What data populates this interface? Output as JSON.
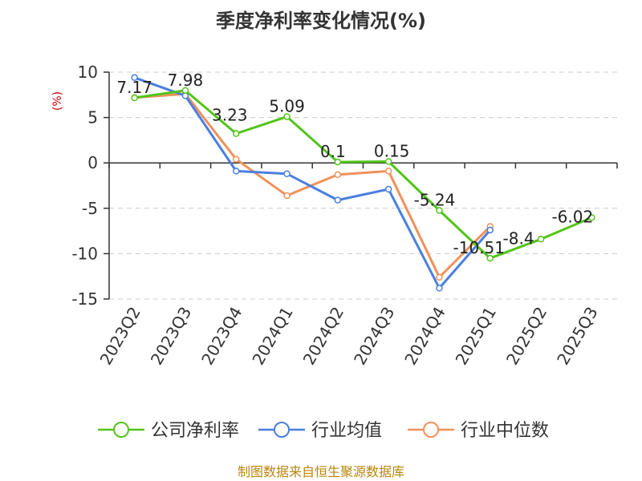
{
  "chart_data": {
    "type": "line",
    "title": "季度净利率变化情况(%)",
    "ylabel": "(%)",
    "xlabel": "",
    "categories": [
      "2023Q2",
      "2023Q3",
      "2023Q4",
      "2024Q1",
      "2024Q2",
      "2024Q3",
      "2024Q4",
      "2025Q1",
      "2025Q2",
      "2025Q3"
    ],
    "ylim": [
      -15,
      10
    ],
    "yticks": [
      10,
      5,
      0,
      -5,
      -10,
      -15
    ],
    "grid": true,
    "legend_position": "bottom",
    "series": [
      {
        "name": "公司净利率",
        "color": "#52c41a",
        "values": [
          7.17,
          7.98,
          3.23,
          5.09,
          0.1,
          0.15,
          -5.24,
          -10.51,
          -8.4,
          -6.02
        ],
        "labels": [
          "7.17",
          "7.98",
          "3.23",
          "5.09",
          "0.1",
          "0.15",
          "-5.24",
          "-10.51",
          "-8.4",
          "-6.02"
        ]
      },
      {
        "name": "行业均值",
        "color": "#4a7fe0",
        "values": [
          9.4,
          7.4,
          -0.9,
          -1.2,
          -4.1,
          -2.9,
          -13.8,
          -7.4,
          null,
          null
        ]
      },
      {
        "name": "行业中位数",
        "color": "#f0915a",
        "values": [
          7.2,
          7.6,
          0.4,
          -3.6,
          -1.3,
          -0.9,
          -12.6,
          -7.0,
          null,
          null
        ]
      }
    ],
    "source": "制图数据来自恒生聚源数据库"
  }
}
